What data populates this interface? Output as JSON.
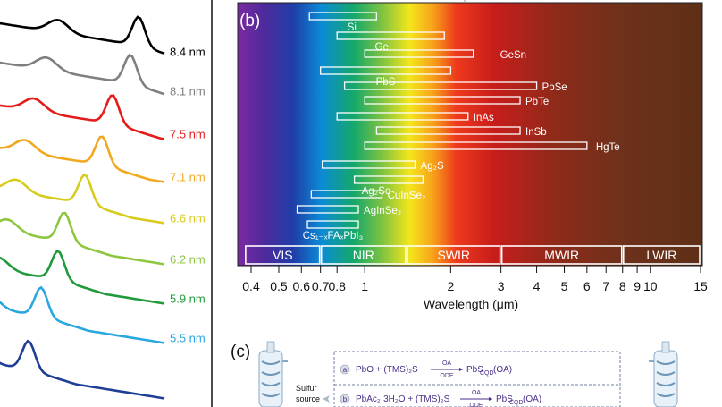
{
  "panel_a": {
    "curves": [
      {
        "label": "8.4 nm",
        "color": "#000000"
      },
      {
        "label": "8.1 nm",
        "color": "#7f7f7f"
      },
      {
        "label": "7.5 nm",
        "color": "#e41b1b"
      },
      {
        "label": "7.1 nm",
        "color": "#f2a81e"
      },
      {
        "label": "6.6 nm",
        "color": "#d7cc1d"
      },
      {
        "label": "6.2 nm",
        "color": "#8dc63f"
      },
      {
        "label": "5.9 nm",
        "color": "#219a3b"
      },
      {
        "label": "5.5 nm",
        "color": "#2aa7df"
      },
      {
        "label": "",
        "color": "#1f3f96"
      }
    ]
  },
  "panel_b": {
    "panel_label": "(b)",
    "xlabel": "Wavelength (μm)",
    "ticks": [
      "0.4",
      "0.5",
      "0.6",
      "0.7",
      "0.8",
      "1",
      "2",
      "3",
      "4",
      "5",
      "6",
      "7",
      "8",
      "9",
      "10",
      "15"
    ],
    "materials": [
      {
        "name": "Si",
        "range_um": [
          0.64,
          1.1
        ]
      },
      {
        "name": "Ge",
        "range_um": [
          0.8,
          1.9
        ]
      },
      {
        "name": "GeSn",
        "range_um": [
          1.0,
          2.4
        ]
      },
      {
        "name": "PbS",
        "range_um": [
          0.7,
          2.0
        ]
      },
      {
        "name": "PbSe",
        "range_um": [
          0.85,
          4.0
        ]
      },
      {
        "name": "PbTe",
        "range_um": [
          1.0,
          3.5
        ]
      },
      {
        "name": "InAs",
        "range_um": [
          0.8,
          2.3
        ]
      },
      {
        "name": "InSb",
        "range_um": [
          1.1,
          3.5
        ]
      },
      {
        "name": "HgTe",
        "range_um": [
          1.0,
          6.0
        ]
      },
      {
        "name": "Ag₂S",
        "range_um": [
          0.71,
          1.5
        ]
      },
      {
        "name": "Ag₂Se",
        "range_um": [
          0.92,
          1.6
        ]
      },
      {
        "name": "CuInSe₂",
        "range_um": [
          0.65,
          1.15
        ]
      },
      {
        "name": "AgInSe₂",
        "range_um": [
          0.58,
          0.95
        ]
      },
      {
        "name": "Cs₁₋ₓFAₓPbI₃",
        "range_um": [
          0.63,
          0.95
        ]
      }
    ],
    "bands": [
      {
        "name": "VIS",
        "range_um": [
          0.38,
          0.7
        ]
      },
      {
        "name": "NIR",
        "range_um": [
          0.7,
          1.4
        ]
      },
      {
        "name": "SWIR",
        "range_um": [
          1.4,
          3.0
        ]
      },
      {
        "name": "MWIR",
        "range_um": [
          3.0,
          8.0
        ]
      },
      {
        "name": "LWIR",
        "range_um": [
          8.0,
          15.0
        ]
      }
    ]
  },
  "panel_c": {
    "panel_label": "(c)",
    "source_label_1": "Sulfur",
    "source_label_2": "source",
    "reactions": [
      {
        "tag": "a",
        "left": "PbO + (TMS)₂S",
        "above": "OA",
        "below": "ODE",
        "product": "PbS",
        "sub": "CQD",
        "tail": "(OA)"
      },
      {
        "tag": "b",
        "left": "PbAc₂·3H₂O + (TMS)₂S",
        "above": "OA",
        "below": "ODE",
        "product": "PbS",
        "sub": "CQD",
        "tail": "(OA)"
      }
    ]
  },
  "colors": {
    "panel_bg": "#5e2f17",
    "label_text": "#ffffff"
  }
}
